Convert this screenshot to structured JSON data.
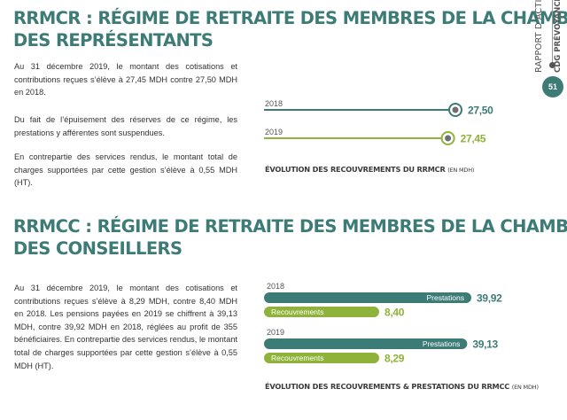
{
  "section1": {
    "title_line1": "RRMCR : RÉGIME DE RETRAITE DES MEMBRES DE LA CHAMBRE",
    "title_line2": "DES REPRÉSENTANTS",
    "paragraphs": [
      "Au 31 décembre 2019, le montant des cotisations et contributions reçues s’élève à 27,45 MDH contre 27,50 MDH en 2018.",
      "Du fait de l’épuisement des réserves de ce régime, les prestations y afférentes sont suspendues.",
      "En contrepartie des services rendus, le montant total de charges supportées par cette gestion s’élève à 0,55 MDH (HT)."
    ],
    "caption": "ÉVOLUTION DES RECOUVREMENTS DU RRMCR",
    "caption_unit": "(EN MDH)"
  },
  "section2": {
    "title_line1": "RRMCC : RÉGIME DE RETRAITE DES MEMBRES DE LA CHAMBRE",
    "title_line2": "DES CONSEILLERS",
    "paragraph": "Au 31 décembre 2019, le montant des cotisations et contributions reçues s’élève à 8,29 MDH, contre 8,40 MDH en 2018. Les pensions payées en 2019 se chiffrent à 39,13 MDH, contre 39,92 MDH en 2018, réglées au profit de 355 bénéficiaires. En contrepartie des services rendus, le montant total de charges supportées par cette gestion s’élève à 0,55 MDH (HT).",
    "caption": "ÉVOLUTION DES RECOUVREMENTS & PRESTATIONS DU RRMCC",
    "caption_unit": "(EN MDH)"
  },
  "sidebar": {
    "report_label": "RAPPORT D’ACTIVITÉ",
    "org_label": "CDG PRÉVOYANCE (CNR",
    "page_number": "51"
  },
  "colors": {
    "teal": "#3d7b77",
    "green": "#8fb23a",
    "title": "#3d7b77"
  },
  "chart_data": [
    {
      "type": "bar",
      "title": "ÉVOLUTION DES RECOUVREMENTS DU RRMCR",
      "unit": "(EN MDH)",
      "orientation": "horizontal",
      "categories": [
        "2018",
        "2019"
      ],
      "values": [
        27.5,
        27.45
      ],
      "value_labels": [
        "27,50",
        "27,45"
      ],
      "colors": [
        "#3d7b77",
        "#8fb23a"
      ],
      "xlim": [
        0,
        27.5
      ]
    },
    {
      "type": "bar",
      "title": "ÉVOLUTION DES RECOUVREMENTS & PRESTATIONS DU RRMCC",
      "unit": "(EN MDH)",
      "orientation": "horizontal",
      "categories": [
        "2018",
        "2019"
      ],
      "series": [
        {
          "name": "Prestations",
          "values": [
            39.92,
            39.13
          ],
          "value_labels": [
            "39,92",
            "39,13"
          ],
          "color": "#3d7b77"
        },
        {
          "name": "Recouvrements",
          "values": [
            8.4,
            8.29
          ],
          "value_labels": [
            "8,40",
            "8,29"
          ],
          "color": "#8fb23a"
        }
      ],
      "xlim": [
        0,
        39.92
      ]
    }
  ]
}
